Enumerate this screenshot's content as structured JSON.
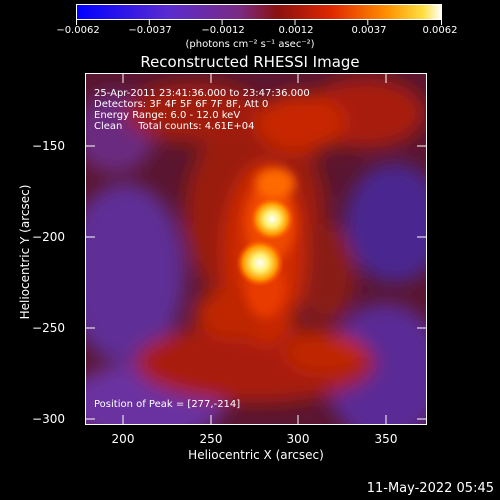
{
  "colorbar": {
    "tick_labels": [
      "−0.0062",
      "−0.0037",
      "−0.0012",
      "0.0012",
      "0.0037",
      "0.0062"
    ],
    "units": "(photons cm⁻² s⁻¹ asec⁻²)"
  },
  "chart_data": {
    "type": "heatmap",
    "title": "Reconstructed RHESSI Image",
    "xlabel": "Heliocentric X (arcsec)",
    "ylabel": "Heliocentric Y (arcsec)",
    "x_ticks": [
      "200",
      "250",
      "300",
      "350"
    ],
    "y_ticks": [
      "−150",
      "−200",
      "−250",
      "−300"
    ],
    "xlim": [
      173,
      366
    ],
    "ylim": [
      -303,
      -110
    ],
    "colorbar_range": [
      -0.0062,
      0.0062
    ],
    "peak": [
      277,
      -214
    ],
    "grid": false
  },
  "info": {
    "line1": "25-Apr-2011 23:41:36.000 to 23:47:36.000",
    "line2": "Detectors: 3F 4F 5F 6F 7F 8F, Att 0",
    "line3": "Energy Range: 6.0 - 12.0 keV",
    "line4": "Clean     Total counts: 4.61E+04",
    "peak_text": "Position of Peak = [277,-214]"
  },
  "footer": {
    "timestamp": "11-May-2022 05:45"
  },
  "colors": {
    "background": "#000000",
    "colormap": [
      "#0000ff",
      "#6a2fb0",
      "#8a2a8a",
      "#a01010",
      "#e03000",
      "#ff8000",
      "#ffd000",
      "#ffffff"
    ]
  }
}
